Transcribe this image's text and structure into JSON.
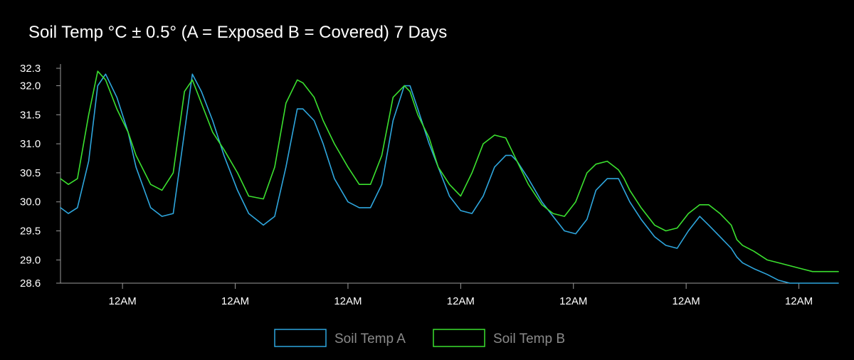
{
  "chart_data": {
    "type": "line",
    "title": "Soil Temp °C ± 0.5° (A = Exposed B = Covered) 7 Days",
    "xlabel": "",
    "ylabel": "",
    "ylim": [
      28.6,
      32.3
    ],
    "y_ticks": [
      "32.3",
      "32.0",
      "31.5",
      "31.0",
      "30.5",
      "30.0",
      "29.5",
      "29.0",
      "28.6"
    ],
    "x_ticks": [
      "12AM",
      "12AM",
      "12AM",
      "12AM",
      "12AM",
      "12AM",
      "12AM"
    ],
    "x_unit": "days",
    "xlim": [
      -0.55,
      6.35
    ],
    "grid": false,
    "legend_position": "bottom-center",
    "series": [
      {
        "name": "Soil Temp A",
        "color": "#2ea6dd",
        "x": [
          -0.55,
          -0.48,
          -0.4,
          -0.3,
          -0.22,
          -0.15,
          -0.05,
          0.05,
          0.12,
          0.25,
          0.35,
          0.45,
          0.55,
          0.62,
          0.7,
          0.8,
          0.9,
          1.02,
          1.12,
          1.25,
          1.35,
          1.45,
          1.55,
          1.6,
          1.7,
          1.78,
          1.88,
          2.0,
          2.1,
          2.2,
          2.3,
          2.4,
          2.5,
          2.55,
          2.62,
          2.72,
          2.8,
          2.9,
          3.0,
          3.1,
          3.2,
          3.3,
          3.4,
          3.45,
          3.5,
          3.6,
          3.72,
          3.82,
          3.92,
          4.02,
          4.12,
          4.2,
          4.3,
          4.4,
          4.45,
          4.5,
          4.6,
          4.72,
          4.82,
          4.92,
          5.02,
          5.12,
          5.2,
          5.3,
          5.4,
          5.45,
          5.5,
          5.6,
          5.72,
          5.82,
          5.92,
          6.02,
          6.12,
          6.2,
          6.3,
          6.35
        ],
        "y": [
          29.9,
          29.8,
          29.9,
          30.7,
          32.0,
          32.2,
          31.8,
          31.2,
          30.6,
          29.9,
          29.75,
          29.8,
          31.2,
          32.2,
          31.9,
          31.4,
          30.8,
          30.2,
          29.8,
          29.6,
          29.75,
          30.6,
          31.6,
          31.6,
          31.4,
          31.0,
          30.4,
          30.0,
          29.9,
          29.9,
          30.3,
          31.4,
          32.0,
          32.0,
          31.6,
          31.0,
          30.6,
          30.1,
          29.85,
          29.8,
          30.1,
          30.6,
          30.8,
          30.8,
          30.7,
          30.4,
          30.0,
          29.75,
          29.5,
          29.45,
          29.7,
          30.2,
          30.4,
          30.4,
          30.2,
          30.0,
          29.7,
          29.4,
          29.25,
          29.2,
          29.5,
          29.75,
          29.6,
          29.4,
          29.2,
          29.05,
          28.95,
          28.85,
          28.75,
          28.65,
          28.6,
          28.6,
          28.6,
          28.6,
          28.6,
          28.6
        ]
      },
      {
        "name": "Soil Temp B",
        "color": "#3be02f",
        "x": [
          -0.55,
          -0.48,
          -0.4,
          -0.3,
          -0.22,
          -0.15,
          -0.05,
          0.05,
          0.12,
          0.25,
          0.35,
          0.45,
          0.55,
          0.62,
          0.7,
          0.8,
          0.9,
          1.02,
          1.12,
          1.25,
          1.35,
          1.45,
          1.55,
          1.6,
          1.7,
          1.78,
          1.88,
          2.0,
          2.1,
          2.2,
          2.3,
          2.4,
          2.5,
          2.55,
          2.62,
          2.72,
          2.8,
          2.9,
          3.0,
          3.1,
          3.2,
          3.3,
          3.4,
          3.45,
          3.5,
          3.6,
          3.72,
          3.82,
          3.92,
          4.02,
          4.12,
          4.2,
          4.3,
          4.4,
          4.45,
          4.5,
          4.6,
          4.72,
          4.82,
          4.92,
          5.02,
          5.12,
          5.2,
          5.3,
          5.4,
          5.45,
          5.5,
          5.6,
          5.72,
          5.82,
          5.92,
          6.02,
          6.12,
          6.2,
          6.3,
          6.35
        ],
        "y": [
          30.4,
          30.3,
          30.4,
          31.5,
          32.25,
          32.1,
          31.6,
          31.2,
          30.8,
          30.3,
          30.2,
          30.5,
          31.9,
          32.1,
          31.7,
          31.2,
          30.9,
          30.5,
          30.1,
          30.05,
          30.6,
          31.7,
          32.1,
          32.05,
          31.8,
          31.4,
          31.0,
          30.6,
          30.3,
          30.3,
          30.8,
          31.8,
          32.0,
          31.9,
          31.5,
          31.1,
          30.6,
          30.3,
          30.1,
          30.5,
          31.0,
          31.15,
          31.1,
          30.9,
          30.7,
          30.3,
          29.95,
          29.8,
          29.75,
          30.0,
          30.5,
          30.65,
          30.7,
          30.55,
          30.4,
          30.2,
          29.9,
          29.6,
          29.5,
          29.55,
          29.8,
          29.95,
          29.95,
          29.8,
          29.6,
          29.35,
          29.25,
          29.15,
          29.0,
          28.95,
          28.9,
          28.85,
          28.8,
          28.8,
          28.8,
          28.8
        ]
      }
    ]
  }
}
